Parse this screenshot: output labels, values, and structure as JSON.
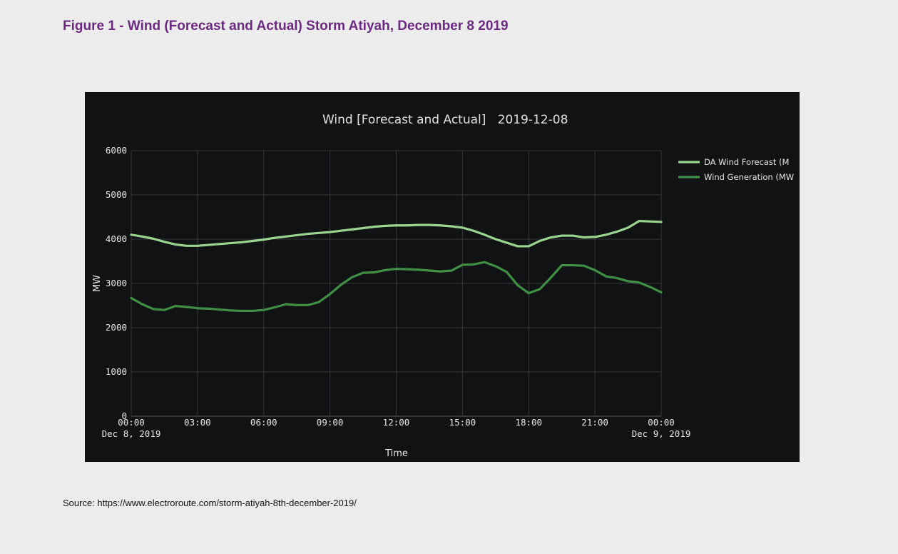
{
  "figure": {
    "title": "Figure 1 - Wind (Forecast and Actual) Storm Atiyah, December 8 2019",
    "title_color": "#6b2a7f",
    "source": "Source: https://www.electroroute.com/storm-atiyah-8th-december-2019/"
  },
  "chart_data": {
    "type": "line",
    "title": "Wind [Forecast and Actual]   2019-12-08",
    "xlabel": "Time",
    "ylabel": "MW",
    "ylim": [
      0,
      6000
    ],
    "xlim": [
      "2019-12-08 00:00",
      "2019-12-09 00:00"
    ],
    "grid": true,
    "legend_position": "top-right",
    "x_ticks": [
      {
        "time": "00:00",
        "sub": "Dec 8, 2019"
      },
      {
        "time": "03:00",
        "sub": ""
      },
      {
        "time": "06:00",
        "sub": ""
      },
      {
        "time": "09:00",
        "sub": ""
      },
      {
        "time": "12:00",
        "sub": ""
      },
      {
        "time": "15:00",
        "sub": ""
      },
      {
        "time": "18:00",
        "sub": ""
      },
      {
        "time": "21:00",
        "sub": ""
      },
      {
        "time": "00:00",
        "sub": "Dec 9, 2019"
      }
    ],
    "y_ticks": [
      0,
      1000,
      2000,
      3000,
      4000,
      5000,
      6000
    ],
    "x": [
      "00:00",
      "00:30",
      "01:00",
      "01:30",
      "02:00",
      "02:30",
      "03:00",
      "03:30",
      "04:00",
      "04:30",
      "05:00",
      "05:30",
      "06:00",
      "06:30",
      "07:00",
      "07:30",
      "08:00",
      "08:30",
      "09:00",
      "09:30",
      "10:00",
      "10:30",
      "11:00",
      "11:30",
      "12:00",
      "12:30",
      "13:00",
      "13:30",
      "14:00",
      "14:30",
      "15:00",
      "15:30",
      "16:00",
      "16:30",
      "17:00",
      "17:30",
      "18:00",
      "18:30",
      "19:00",
      "19:30",
      "20:00",
      "20:30",
      "21:00",
      "21:30",
      "22:00",
      "22:30",
      "23:00",
      "23:30",
      "24:00"
    ],
    "series": [
      {
        "name": "DA Wind Forecast (M",
        "color": "#9ad48e",
        "values": [
          4100,
          4060,
          4010,
          3940,
          3880,
          3850,
          3850,
          3870,
          3890,
          3910,
          3930,
          3960,
          3990,
          4030,
          4060,
          4090,
          4120,
          4140,
          4160,
          4190,
          4220,
          4250,
          4280,
          4300,
          4310,
          4310,
          4320,
          4320,
          4310,
          4290,
          4260,
          4190,
          4100,
          4000,
          3920,
          3840,
          3840,
          3960,
          4040,
          4080,
          4080,
          4040,
          4050,
          4100,
          4170,
          4260,
          4410,
          4400,
          4390
        ]
      },
      {
        "name": "Wind Generation (MW",
        "color": "#3f8f44",
        "values": [
          2670,
          2530,
          2420,
          2400,
          2490,
          2470,
          2440,
          2430,
          2410,
          2390,
          2380,
          2380,
          2400,
          2460,
          2530,
          2510,
          2510,
          2580,
          2760,
          2970,
          3140,
          3240,
          3250,
          3300,
          3330,
          3320,
          3310,
          3290,
          3270,
          3290,
          3420,
          3430,
          3480,
          3390,
          3260,
          2960,
          2780,
          2870,
          3130,
          3410,
          3410,
          3400,
          3300,
          3160,
          3120,
          3050,
          3020,
          2920,
          2800
        ]
      }
    ]
  }
}
